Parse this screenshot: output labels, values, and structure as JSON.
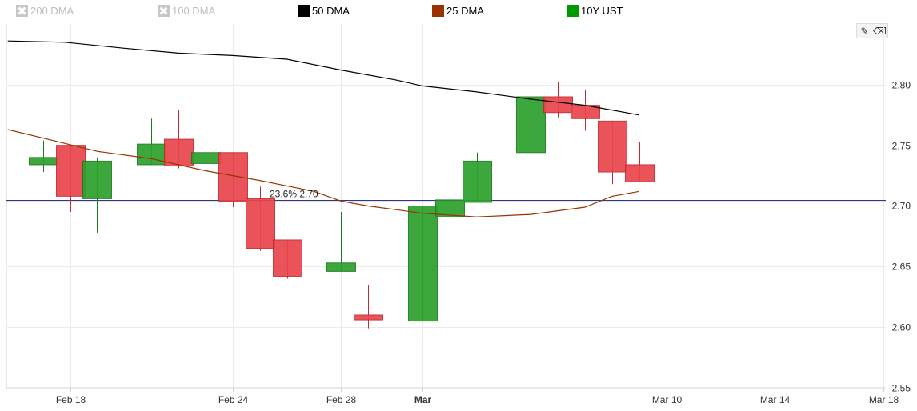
{
  "legend": [
    {
      "label": "200 DMA",
      "color": "#c7c7c7",
      "enabled": false
    },
    {
      "label": "100 DMA",
      "color": "#c7c7c7",
      "enabled": false
    },
    {
      "label": "50 DMA",
      "color": "#000000",
      "enabled": true
    },
    {
      "label": "25 DMA",
      "color": "#993300",
      "enabled": true
    },
    {
      "label": "10Y UST",
      "color": "#009900",
      "enabled": true
    }
  ],
  "toolbar": {
    "draw_icon": "pencil-icon",
    "erase_icon": "eraser-icon"
  },
  "chart_data": {
    "type": "candlestick",
    "y_axis": {
      "min": 2.55,
      "max": 2.85,
      "ticks": [
        2.55,
        2.6,
        2.65,
        2.7,
        2.75,
        2.8
      ],
      "position": "right"
    },
    "x_axis": {
      "ticks": [
        {
          "label": "Feb 18",
          "day": 18,
          "bold": false
        },
        {
          "label": "Feb 24",
          "day": 24,
          "bold": false
        },
        {
          "label": "Feb 28",
          "day": 28,
          "bold": false
        },
        {
          "label": "Mar",
          "day": 31,
          "bold": true
        },
        {
          "label": "Mar 10",
          "day": 40,
          "bold": false
        },
        {
          "label": "Mar 14",
          "day": 44,
          "bold": false
        },
        {
          "label": "Mar 18",
          "day": 48,
          "bold": false
        }
      ],
      "range": [
        15.65,
        48.1
      ]
    },
    "candles": [
      {
        "day": 17,
        "open": 2.734,
        "close": 2.74,
        "high": 2.754,
        "low": 2.728
      },
      {
        "day": 18,
        "open": 2.75,
        "close": 2.708,
        "high": 2.75,
        "low": 2.695
      },
      {
        "day": 19,
        "open": 2.706,
        "close": 2.737,
        "high": 2.74,
        "low": 2.678
      },
      {
        "day": 21,
        "open": 2.734,
        "close": 2.751,
        "high": 2.772,
        "low": 2.734
      },
      {
        "day": 22,
        "open": 2.755,
        "close": 2.733,
        "high": 2.779,
        "low": 2.731
      },
      {
        "day": 23,
        "open": 2.735,
        "close": 2.744,
        "high": 2.759,
        "low": 2.732
      },
      {
        "day": 24,
        "open": 2.744,
        "close": 2.704,
        "high": 2.744,
        "low": 2.699
      },
      {
        "day": 25,
        "open": 2.706,
        "close": 2.665,
        "high": 2.716,
        "low": 2.663
      },
      {
        "day": 26,
        "open": 2.672,
        "close": 2.642,
        "high": 2.672,
        "low": 2.64
      },
      {
        "day": 28,
        "open": 2.646,
        "close": 2.653,
        "high": 2.695,
        "low": 2.646
      },
      {
        "day": 29,
        "open": 2.61,
        "close": 2.606,
        "high": 2.635,
        "low": 2.599
      },
      {
        "day": 31,
        "open": 2.605,
        "close": 2.7,
        "high": 2.7,
        "low": 2.605
      },
      {
        "day": 32,
        "open": 2.691,
        "close": 2.705,
        "high": 2.715,
        "low": 2.682
      },
      {
        "day": 33,
        "open": 2.703,
        "close": 2.737,
        "high": 2.744,
        "low": 2.703
      },
      {
        "day": 35,
        "open": 2.744,
        "close": 2.79,
        "high": 2.815,
        "low": 2.723
      },
      {
        "day": 36,
        "open": 2.79,
        "close": 2.777,
        "high": 2.802,
        "low": 2.773
      },
      {
        "day": 37,
        "open": 2.783,
        "close": 2.772,
        "high": 2.796,
        "low": 2.762
      },
      {
        "day": 38,
        "open": 2.77,
        "close": 2.728,
        "high": 2.77,
        "low": 2.718
      },
      {
        "day": 39,
        "open": 2.734,
        "close": 2.72,
        "high": 2.753,
        "low": 2.72
      }
    ],
    "candle_colors": {
      "up": "#2ca02c",
      "down": "#e8454c",
      "up_border": "#1e7a1e",
      "down_border": "#c22a30"
    },
    "series": [
      {
        "name": "50 DMA",
        "color": "#000000",
        "points": [
          [
            15.7,
            2.836
          ],
          [
            17.8,
            2.835
          ],
          [
            20,
            2.83
          ],
          [
            22,
            2.826
          ],
          [
            24,
            2.824
          ],
          [
            26,
            2.821
          ],
          [
            28,
            2.812
          ],
          [
            30,
            2.804
          ],
          [
            31,
            2.799
          ],
          [
            33,
            2.794
          ],
          [
            35,
            2.788
          ],
          [
            37,
            2.783
          ],
          [
            39,
            2.775
          ]
        ]
      },
      {
        "name": "25 DMA",
        "color": "#993300",
        "points": [
          [
            15.7,
            2.763
          ],
          [
            17,
            2.756
          ],
          [
            19,
            2.745
          ],
          [
            21,
            2.739
          ],
          [
            23,
            2.729
          ],
          [
            25,
            2.721
          ],
          [
            27,
            2.712
          ],
          [
            28,
            2.704
          ],
          [
            29,
            2.7
          ],
          [
            31,
            2.694
          ],
          [
            33,
            2.691
          ],
          [
            35,
            2.693
          ],
          [
            37,
            2.699
          ],
          [
            38,
            2.708
          ],
          [
            39,
            2.712
          ]
        ]
      }
    ],
    "annotation": {
      "label": "23.6% 2.70",
      "value": 2.7045,
      "color": "#1a1a6e"
    },
    "grid": true
  }
}
